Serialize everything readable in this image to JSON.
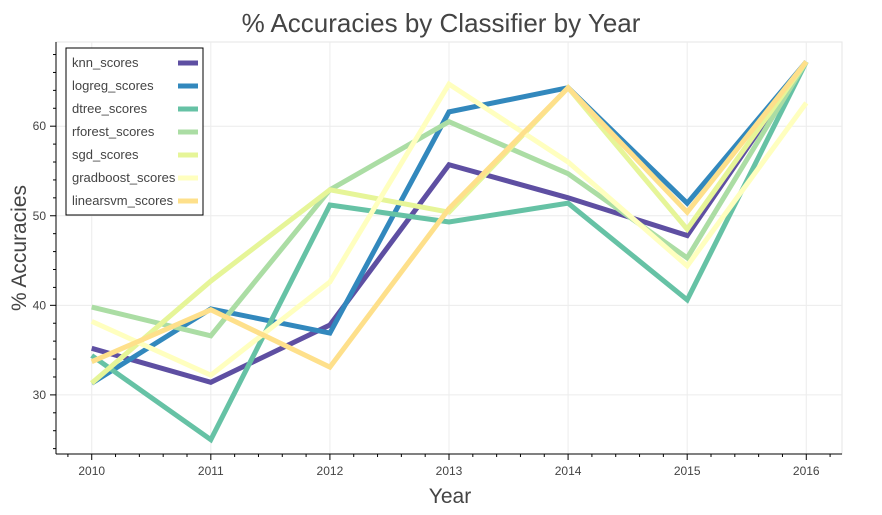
{
  "chart_data": {
    "type": "line",
    "title": "% Accuracies by Classifier by Year",
    "xlabel": "Year",
    "ylabel": "% Accuracies",
    "x": [
      2010,
      2011,
      2012,
      2013,
      2014,
      2015,
      2016
    ],
    "xlim": [
      2009.7,
      2016.3
    ],
    "ylim": [
      23.4,
      69.4
    ],
    "xticks": [
      "2010",
      "2011",
      "2012",
      "2013",
      "2014",
      "2015",
      "2016"
    ],
    "yticks": [
      "30",
      "40",
      "50",
      "60"
    ],
    "grid": true,
    "legend_position": "top-left",
    "series": [
      {
        "name": "knn_scores",
        "color": "#5e4fa2",
        "values": [
          35.2,
          31.4,
          37.8,
          55.7,
          52.0,
          47.8,
          67.2
        ]
      },
      {
        "name": "logreg_scores",
        "color": "#3288bd",
        "values": [
          31.3,
          39.6,
          36.9,
          61.6,
          64.3,
          51.4,
          67.2
        ]
      },
      {
        "name": "dtree_scores",
        "color": "#66c2a5",
        "values": [
          34.4,
          25.0,
          51.2,
          49.3,
          51.4,
          40.6,
          67.2
        ]
      },
      {
        "name": "rforest_scores",
        "color": "#abdda4",
        "values": [
          39.8,
          36.6,
          52.9,
          60.5,
          54.7,
          45.3,
          67.2
        ]
      },
      {
        "name": "sgd_scores",
        "color": "#e6f598",
        "values": [
          31.3,
          42.7,
          52.9,
          50.4,
          64.3,
          48.5,
          67.2
        ]
      },
      {
        "name": "gradboost_scores",
        "color": "#ffffbf",
        "values": [
          38.2,
          32.2,
          42.6,
          64.7,
          56.0,
          44.4,
          62.6
        ]
      },
      {
        "name": "linearsvm_scores",
        "color": "#fee08b",
        "values": [
          33.7,
          39.5,
          33.1,
          50.8,
          64.3,
          50.4,
          67.2
        ]
      }
    ]
  }
}
